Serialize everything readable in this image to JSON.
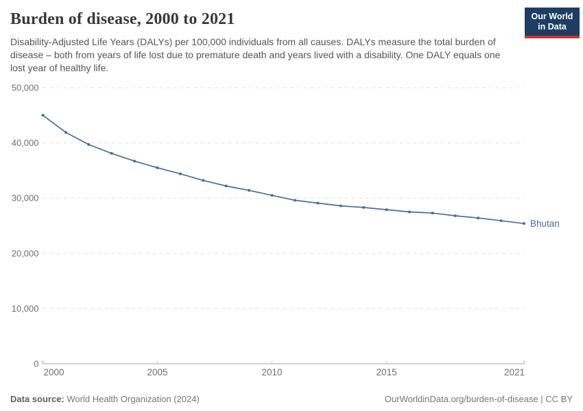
{
  "header": {
    "title": "Burden of disease, 2000 to 2021",
    "subtitle": "Disability-Adjusted Life Years (DALYs) per 100,000 individuals from all causes. DALYs measure the total burden of disease – both from years of life lost due to premature death and years lived with a disability. One DALY equals one lost year of healthy life.",
    "logo": {
      "line1": "Our World",
      "line2": "in Data",
      "bg_color": "#1d3d63",
      "stripe_color": "#cc342e"
    }
  },
  "chart_data": {
    "type": "line",
    "title": "Burden of disease, 2000 to 2021",
    "xlabel": "",
    "ylabel": "DALYs per 100,000 individuals",
    "xlim": [
      2000,
      2021
    ],
    "ylim": [
      0,
      50000
    ],
    "x_ticks": [
      2000,
      2005,
      2010,
      2015,
      2021
    ],
    "x_tick_labels": [
      "2000",
      "2005",
      "2010",
      "2015",
      "2021"
    ],
    "y_ticks": [
      0,
      10000,
      20000,
      30000,
      40000,
      50000
    ],
    "y_tick_labels": [
      "0",
      "10,000",
      "20,000",
      "30,000",
      "40,000",
      "50,000"
    ],
    "grid": "horizontal-dashed",
    "legend_position": "end-of-line-label",
    "series": [
      {
        "name": "Bhutan",
        "color": "#4c6a9c",
        "x": [
          2000,
          2001,
          2002,
          2003,
          2004,
          2005,
          2006,
          2007,
          2008,
          2009,
          2010,
          2011,
          2012,
          2013,
          2014,
          2015,
          2016,
          2017,
          2018,
          2019,
          2020,
          2021
        ],
        "values": [
          45000,
          41900,
          39700,
          38100,
          36700,
          35500,
          34400,
          33200,
          32200,
          31400,
          30500,
          29600,
          29100,
          28600,
          28300,
          27900,
          27500,
          27300,
          26800,
          26400,
          25900,
          25400
        ]
      }
    ]
  },
  "colors": {
    "gridline": "#e0e0e0",
    "axis": "#a3a3a3",
    "mid_tick": "#c9c9c9",
    "tick_text": "#6e6e6e"
  },
  "footer": {
    "source_label": "Data source:",
    "source_value": "World Health Organization (2024)",
    "attribution": "OurWorldinData.org/burden-of-disease | CC BY"
  }
}
